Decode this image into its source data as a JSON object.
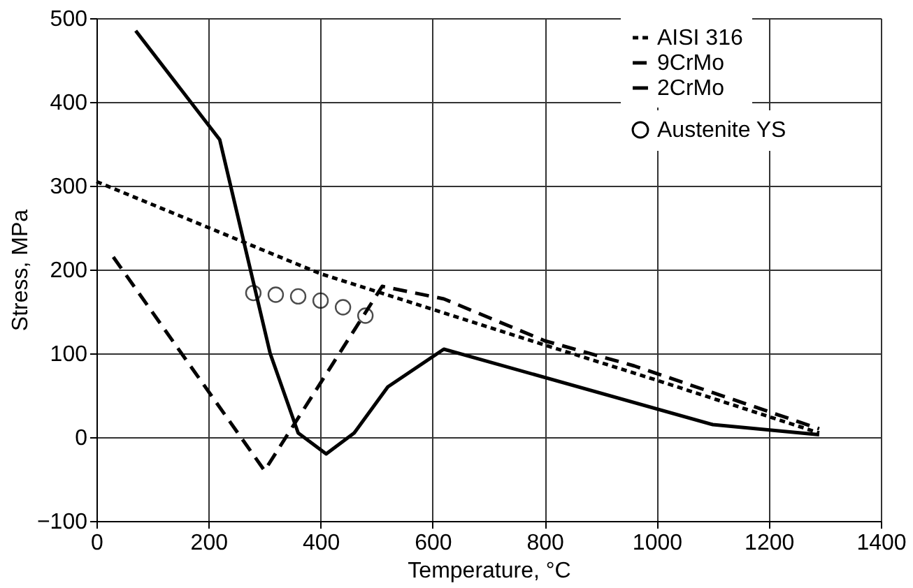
{
  "chart_data": {
    "type": "line",
    "xlabel": "Temperature, °C",
    "ylabel": "Stress, MPa",
    "xlim": [
      0,
      1400
    ],
    "ylim": [
      -100,
      500
    ],
    "xticks": [
      0,
      200,
      400,
      600,
      800,
      1000,
      1200,
      1400
    ],
    "yticks": [
      -100,
      0,
      100,
      200,
      300,
      400,
      500
    ],
    "grid": true,
    "legend": "top right",
    "series": [
      {
        "name": "AISI 316",
        "line_style": "dotted",
        "marker": "none",
        "color": "#000000",
        "x": [
          0,
          400,
          800,
          1000,
          1290
        ],
        "values": [
          305,
          195,
          110,
          68,
          5
        ]
      },
      {
        "name": "9CrMo",
        "line_style": "dashed",
        "marker": "none",
        "color": "#000000",
        "x": [
          30,
          300,
          510,
          620,
          800,
          960,
          1290
        ],
        "values": [
          215,
          -40,
          180,
          165,
          115,
          85,
          10
        ]
      },
      {
        "name": "2CrMo",
        "line_style": "solid",
        "marker": "none",
        "color": "#000000",
        "x": [
          70,
          220,
          310,
          360,
          410,
          460,
          520,
          620,
          1100,
          1290
        ],
        "values": [
          485,
          355,
          100,
          5,
          -20,
          5,
          60,
          105,
          15,
          3
        ]
      },
      {
        "name": "Austenite YS",
        "type": "scatter",
        "marker": "circle",
        "color": "#000000",
        "x": [
          280,
          320,
          360,
          400,
          440,
          480
        ],
        "values": [
          172,
          170,
          168,
          163,
          155,
          145
        ]
      }
    ]
  }
}
